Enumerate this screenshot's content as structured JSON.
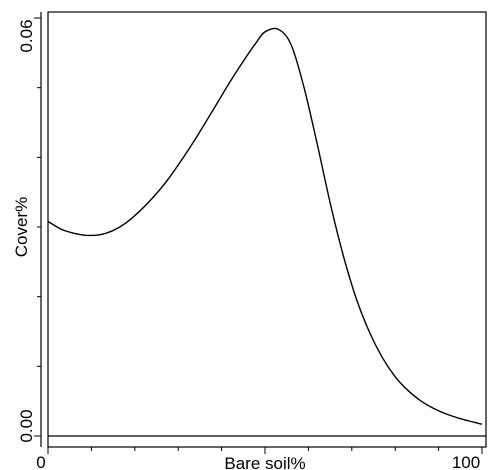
{
  "chart_data": {
    "type": "line",
    "title": "",
    "xlabel": "Bare soil%",
    "ylabel": "Cover%",
    "xlim": [
      0,
      100
    ],
    "ylim": [
      0,
      0.06
    ],
    "x_tick_labels": [
      "0",
      "100"
    ],
    "y_tick_labels": [
      "0.00",
      "0.06"
    ],
    "grid": false,
    "legend": "none",
    "line_color": "#000000",
    "series": [
      {
        "x": [
          0,
          3,
          6,
          9,
          12,
          15,
          18,
          21,
          24,
          27,
          30,
          33,
          36,
          39,
          42,
          45,
          48,
          50,
          53,
          56,
          59,
          62,
          65,
          68,
          71,
          74,
          77,
          80,
          83,
          86,
          89,
          92,
          95,
          98,
          100
        ],
        "y": [
          0.0308,
          0.0297,
          0.0291,
          0.0288,
          0.0289,
          0.0295,
          0.0306,
          0.0322,
          0.0341,
          0.0363,
          0.0389,
          0.0417,
          0.0447,
          0.0478,
          0.0509,
          0.0538,
          0.0565,
          0.058,
          0.0584,
          0.0562,
          0.05,
          0.042,
          0.0335,
          0.026,
          0.0198,
          0.015,
          0.0113,
          0.0085,
          0.0065,
          0.005,
          0.0039,
          0.0031,
          0.0025,
          0.002,
          0.0017
        ]
      }
    ]
  }
}
